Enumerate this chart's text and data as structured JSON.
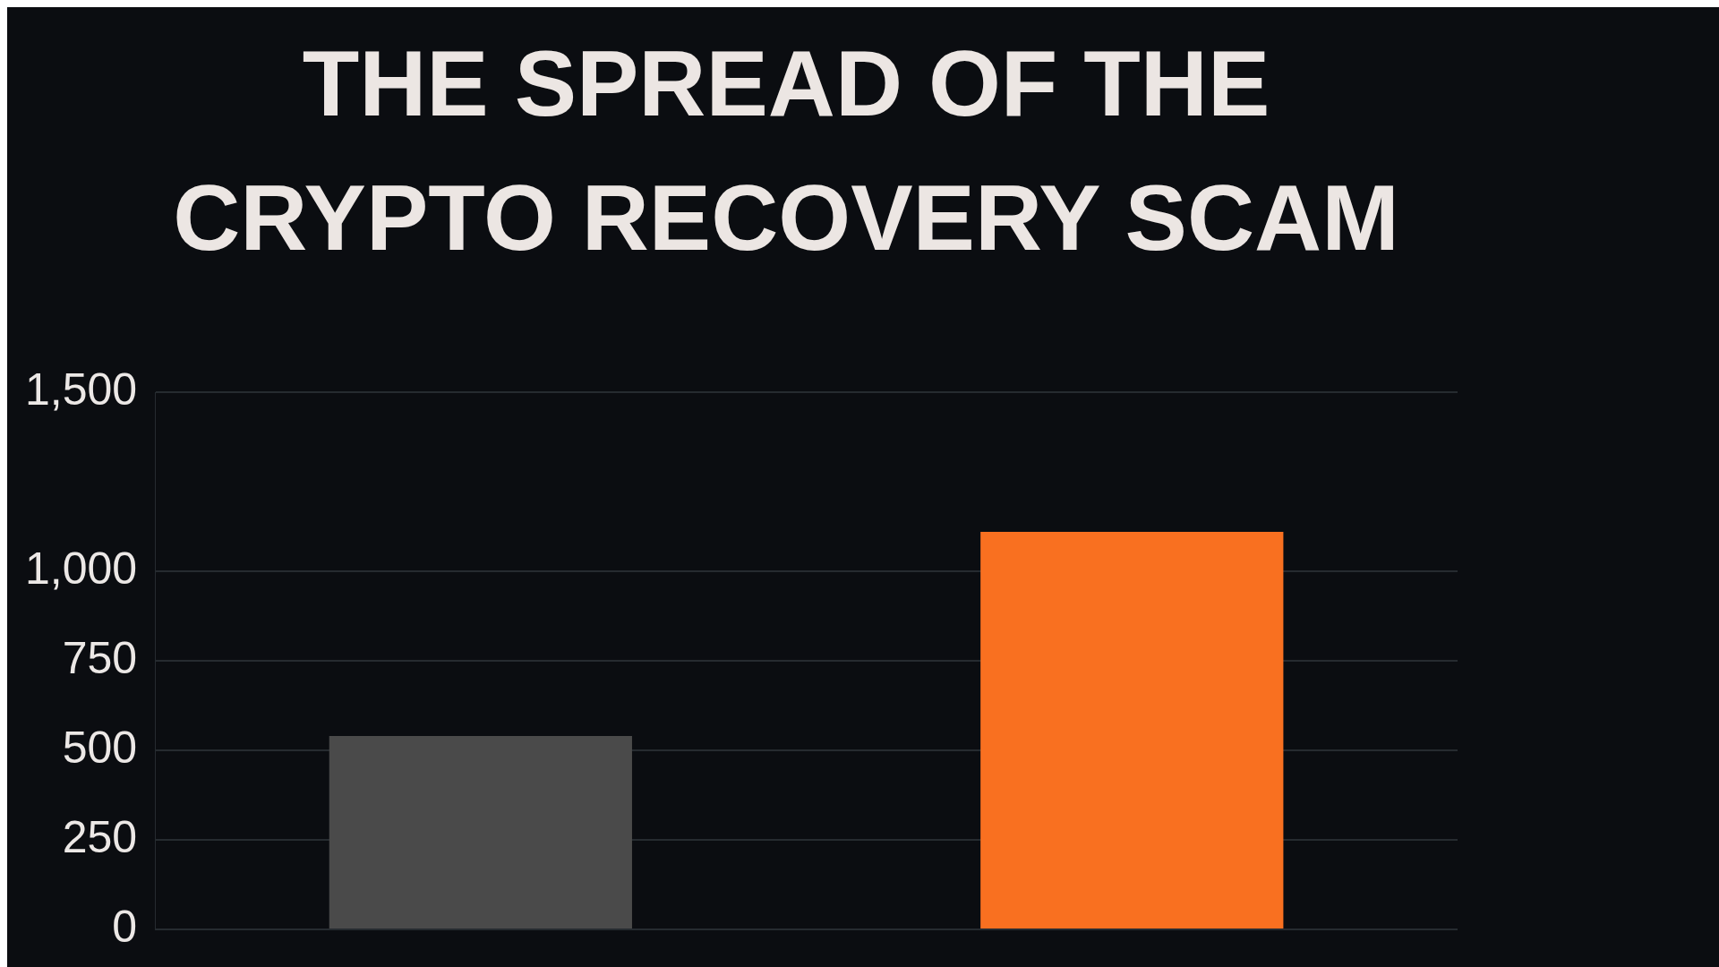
{
  "chart_data": {
    "type": "bar",
    "title": "THE SPREAD OF THE CRYPTO RECOVERY SCAM",
    "categories": [
      null,
      null
    ],
    "values": [
      540,
      1110
    ],
    "colors": [
      "#4a4a4a",
      "#f97020"
    ],
    "ylim": [
      0,
      1500
    ],
    "yticks": [
      0,
      250,
      500,
      750,
      {
        "value": 1000,
        "label": "1,000"
      },
      {
        "value": 1500,
        "label": "1,500"
      }
    ],
    "grid": "y",
    "tick_labels": "y",
    "legend": false
  }
}
